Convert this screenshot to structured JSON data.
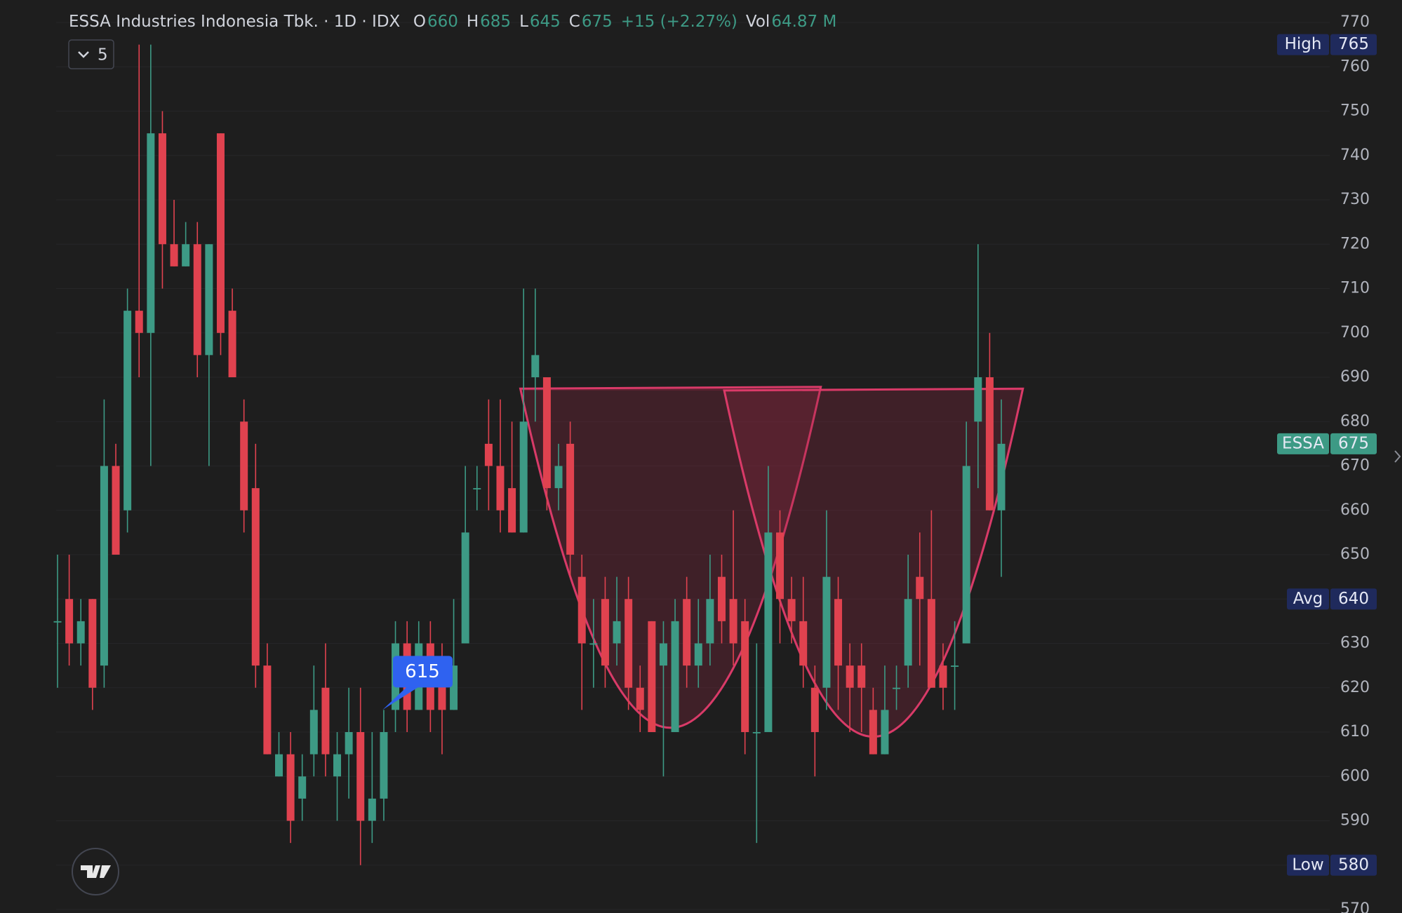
{
  "chart_data": {
    "type": "candlestick",
    "title": "ESSA Industries Indonesia Tbk. · 1D · IDX",
    "legend_values": [
      {
        "label": "O",
        "value": 660
      },
      {
        "label": "H",
        "value": 685
      },
      {
        "label": "L",
        "value": 645
      },
      {
        "label": "C",
        "value": 675
      }
    ],
    "change": "+15 (+2.27%)",
    "volume": {
      "label": "Vol",
      "value": "64.87 M"
    },
    "collapsed_indicators": 5,
    "up_color": "#3d9a85",
    "down_color": "#e0424f",
    "open": [
      635,
      640,
      630,
      640,
      625,
      670,
      660,
      705,
      700,
      745,
      720,
      715,
      720,
      695,
      745,
      705,
      680,
      665,
      625,
      600,
      605,
      595,
      605,
      620,
      600,
      605,
      610,
      590,
      595,
      615,
      630,
      615,
      630,
      625,
      615,
      630,
      665,
      675,
      670,
      665,
      655,
      690,
      690,
      665,
      675,
      645,
      630,
      640,
      630,
      640,
      620,
      635,
      625,
      610,
      640,
      625,
      630,
      645,
      640,
      635,
      610,
      610,
      655,
      640,
      635,
      620,
      620,
      640,
      625,
      625,
      615,
      605,
      620,
      625,
      645,
      640,
      625,
      625,
      630,
      680,
      690,
      660
    ],
    "high": [
      650,
      650,
      640,
      640,
      685,
      675,
      710,
      765,
      765,
      750,
      730,
      725,
      725,
      720,
      745,
      710,
      685,
      675,
      630,
      610,
      610,
      605,
      625,
      630,
      610,
      620,
      620,
      610,
      615,
      635,
      635,
      635,
      635,
      630,
      640,
      670,
      670,
      685,
      685,
      680,
      710,
      710,
      690,
      675,
      680,
      650,
      640,
      645,
      645,
      645,
      625,
      635,
      635,
      640,
      645,
      640,
      650,
      650,
      660,
      640,
      630,
      670,
      660,
      645,
      645,
      625,
      660,
      645,
      630,
      630,
      620,
      625,
      625,
      650,
      655,
      660,
      630,
      635,
      680,
      720,
      700,
      685
    ],
    "low": [
      620,
      625,
      625,
      615,
      620,
      650,
      655,
      690,
      670,
      710,
      715,
      715,
      690,
      670,
      695,
      690,
      655,
      620,
      605,
      600,
      585,
      590,
      600,
      600,
      590,
      595,
      580,
      585,
      590,
      610,
      610,
      615,
      610,
      605,
      615,
      630,
      660,
      660,
      655,
      655,
      655,
      680,
      660,
      660,
      645,
      615,
      620,
      620,
      625,
      615,
      610,
      610,
      600,
      610,
      620,
      620,
      625,
      630,
      625,
      605,
      585,
      610,
      630,
      630,
      620,
      600,
      615,
      615,
      610,
      610,
      605,
      605,
      615,
      620,
      625,
      620,
      615,
      615,
      630,
      665,
      660,
      645
    ],
    "close": [
      635,
      630,
      635,
      620,
      670,
      650,
      705,
      700,
      745,
      720,
      715,
      720,
      695,
      720,
      700,
      690,
      660,
      625,
      605,
      605,
      590,
      600,
      615,
      605,
      605,
      610,
      590,
      595,
      610,
      630,
      615,
      630,
      615,
      615,
      625,
      655,
      665,
      670,
      660,
      655,
      680,
      695,
      665,
      670,
      650,
      630,
      630,
      625,
      635,
      620,
      615,
      610,
      630,
      635,
      625,
      630,
      640,
      635,
      630,
      610,
      610,
      655,
      640,
      635,
      625,
      610,
      645,
      625,
      620,
      620,
      605,
      615,
      620,
      640,
      640,
      620,
      620,
      625,
      670,
      690,
      660,
      675
    ],
    "ylim": [
      570,
      770
    ],
    "yticks": [
      570,
      580,
      590,
      600,
      610,
      620,
      630,
      640,
      650,
      660,
      670,
      680,
      690,
      700,
      710,
      720,
      730,
      740,
      750,
      760,
      770
    ],
    "grid": true,
    "price_labels": [
      {
        "label": "High",
        "value": 765,
        "color": "#1f2a5c"
      },
      {
        "label": "ESSA",
        "value": 675,
        "color": "#3d9a85"
      },
      {
        "label": "Avg",
        "value": 640,
        "color": "#1f2a5c"
      },
      {
        "label": "Low",
        "value": 580,
        "color": "#1f2a5c"
      }
    ],
    "callout": {
      "value": 615,
      "color": "#2f62f0"
    }
  }
}
